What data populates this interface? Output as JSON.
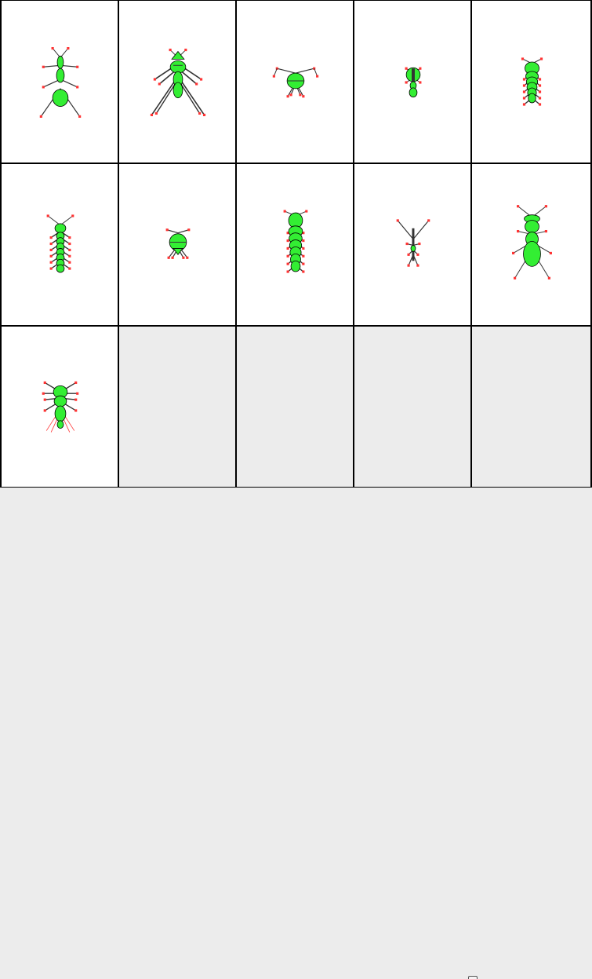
{
  "colors": {
    "body_fill": "#33ee33",
    "outline": "#000000",
    "leg": "#333333",
    "foot": "#ff3333",
    "cell_bg": "#ffffff",
    "empty_bg": "#ececec",
    "grid_line": "#000000"
  },
  "grid": {
    "columns": 5,
    "rows": 3,
    "cells": [
      {
        "id": "cell-1",
        "type": "ant"
      },
      {
        "id": "cell-2",
        "type": "mantis"
      },
      {
        "id": "cell-3",
        "type": "beetle"
      },
      {
        "id": "cell-4",
        "type": "tick"
      },
      {
        "id": "cell-5",
        "type": "larva"
      },
      {
        "id": "cell-6",
        "type": "centipede"
      },
      {
        "id": "cell-7",
        "type": "beetle-small"
      },
      {
        "id": "cell-8",
        "type": "grub"
      },
      {
        "id": "cell-9",
        "type": "stick"
      },
      {
        "id": "cell-10",
        "type": "wasp"
      },
      {
        "id": "cell-11",
        "type": "spider"
      },
      {
        "id": "cell-12",
        "type": "empty"
      },
      {
        "id": "cell-13",
        "type": "empty"
      },
      {
        "id": "cell-14",
        "type": "empty"
      },
      {
        "id": "cell-15",
        "type": "empty"
      }
    ]
  }
}
